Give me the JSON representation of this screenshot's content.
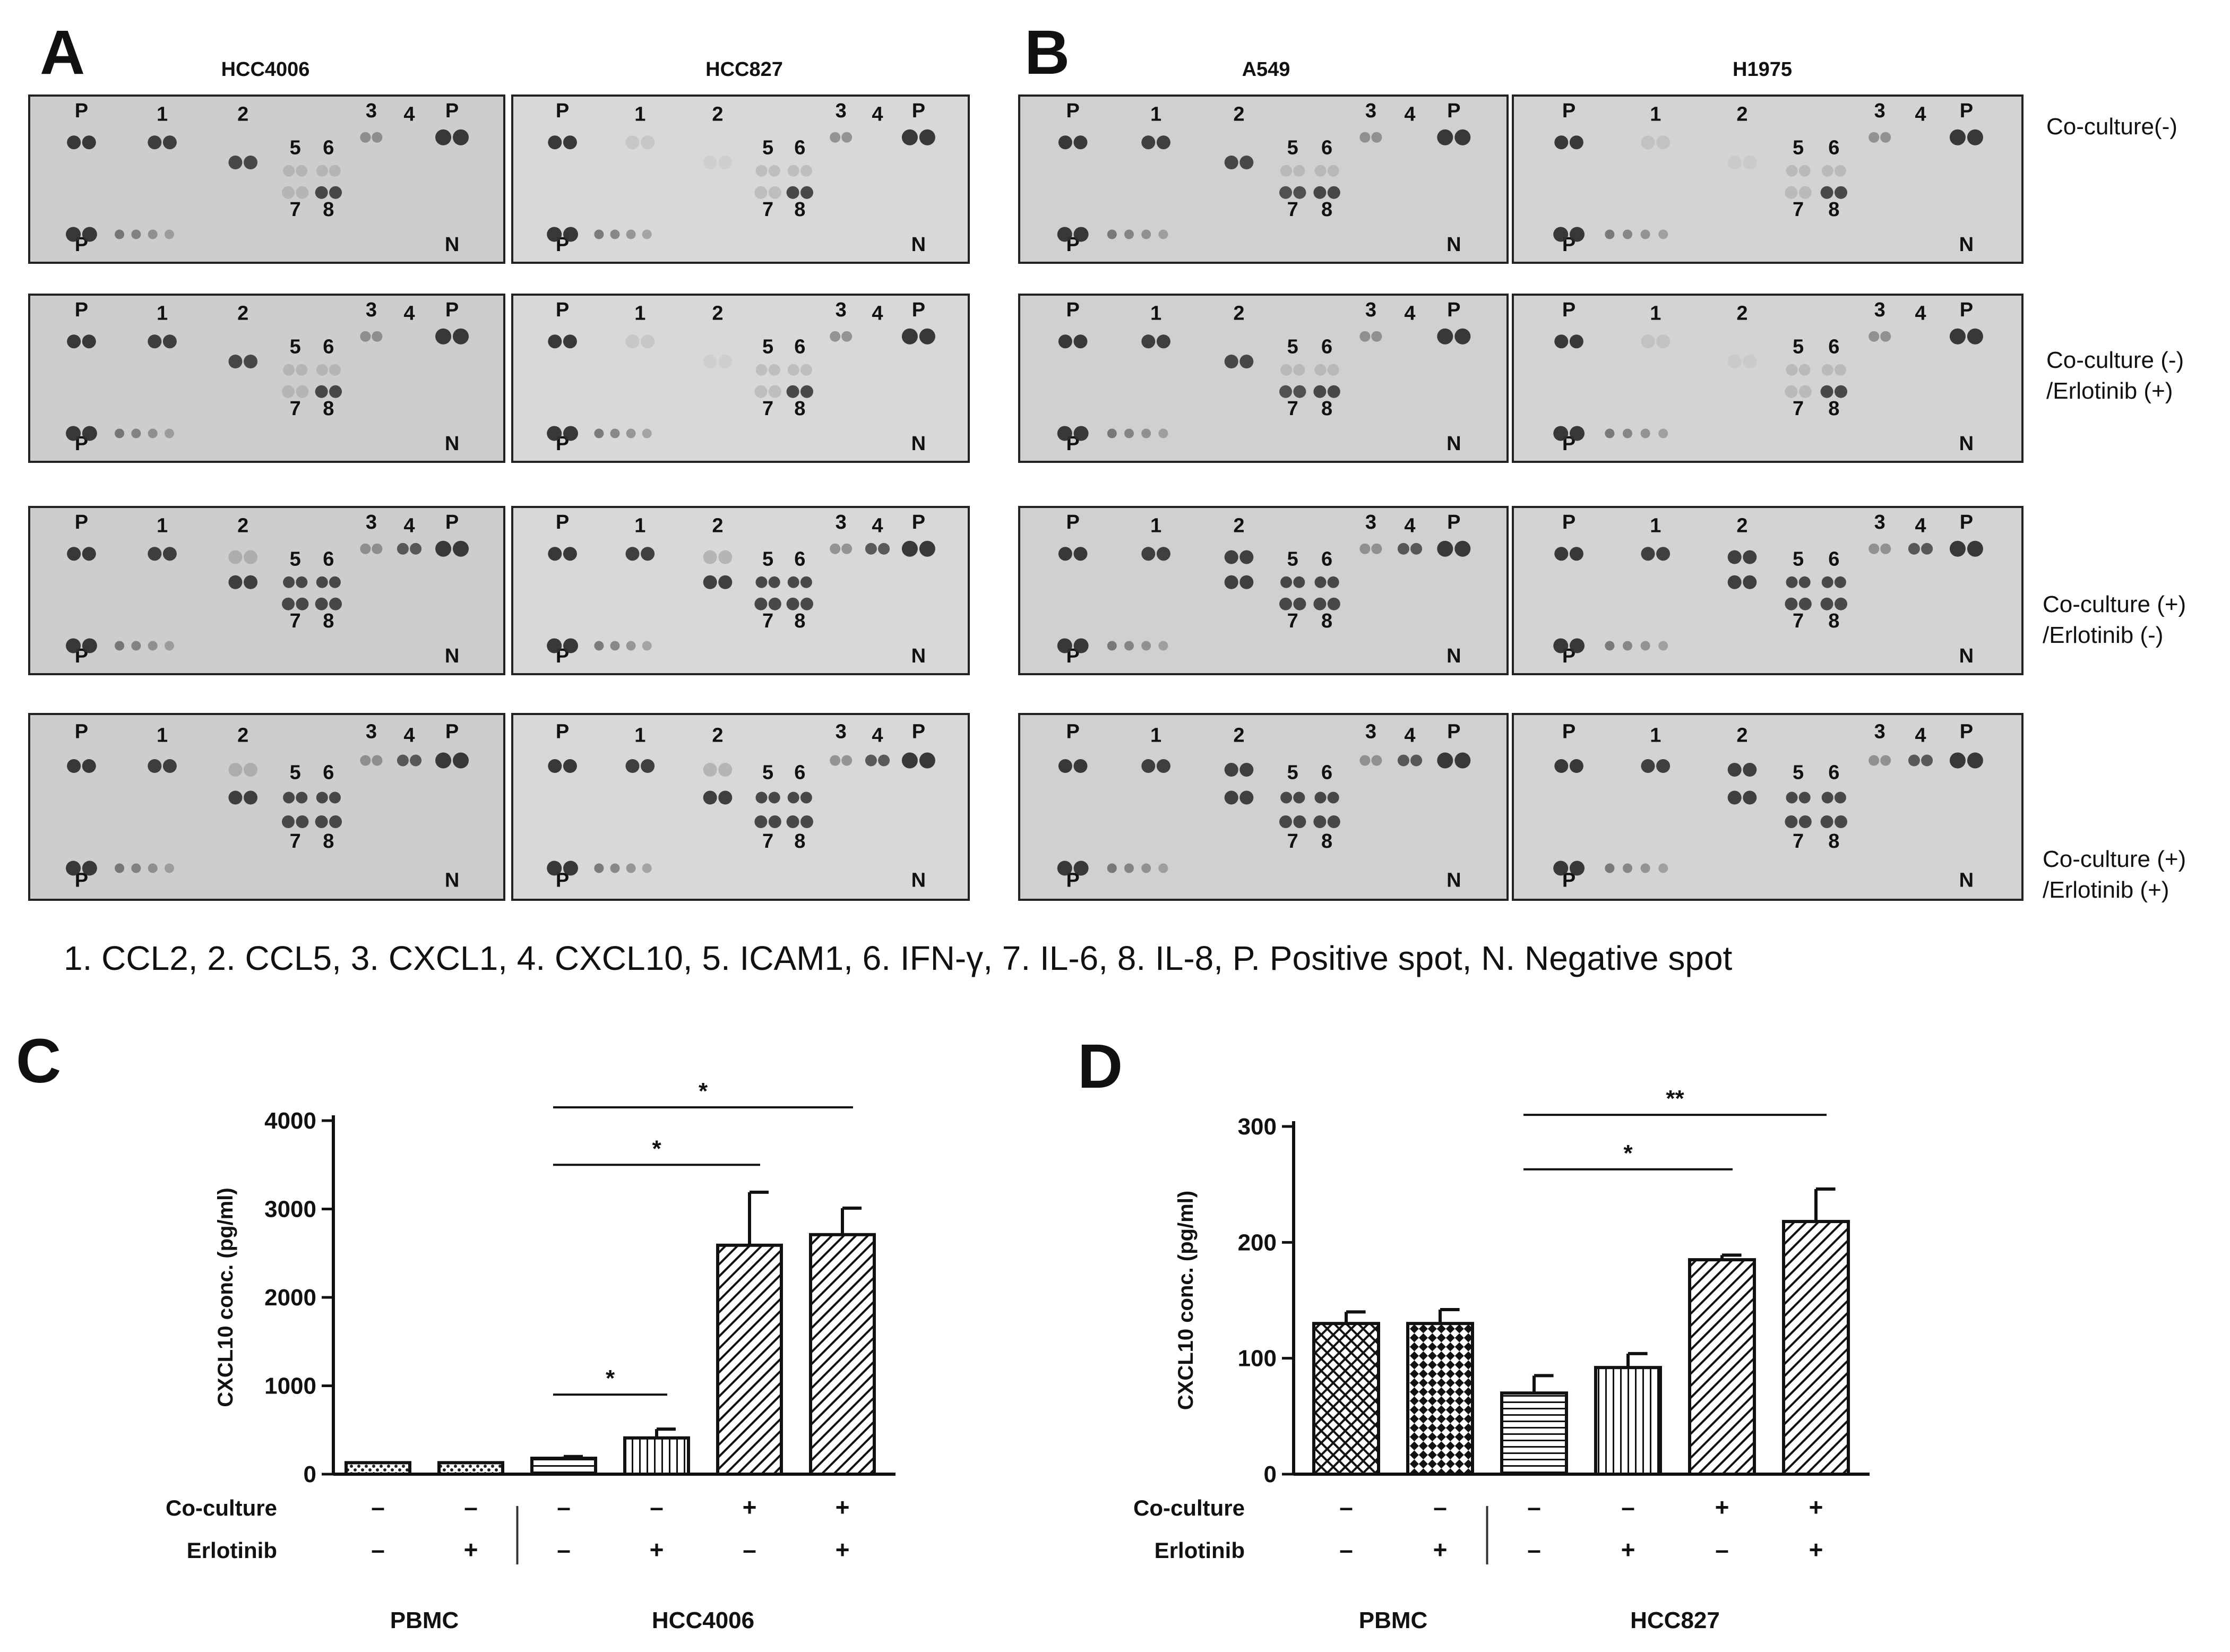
{
  "panels": {
    "a": {
      "letter": "A",
      "columns": [
        "HCC4006",
        "HCC827"
      ]
    },
    "b": {
      "letter": "B",
      "columns": [
        "A549",
        "H1975"
      ]
    },
    "c": {
      "letter": "C"
    },
    "d": {
      "letter": "D"
    }
  },
  "conditions": [
    {
      "line1": "Co-culture(-)",
      "line2": ""
    },
    {
      "line1": "Co-culture (-)",
      "line2": "/Erlotinib (+)"
    },
    {
      "line1": "Co-culture (+)",
      "line2": "/Erlotinib (-)"
    },
    {
      "line1": "Co-culture (+)",
      "line2": "/Erlotinib (+)"
    }
  ],
  "spot_labels": {
    "P": "P",
    "N": "N",
    "n1": "1",
    "n2": "2",
    "n3": "3",
    "n4": "4",
    "n5": "5",
    "n6": "6",
    "n7": "7",
    "n8": "8"
  },
  "legend_text": "1. CCL2, 2. CCL5, 3. CXCL1, 4. CXCL10, 5. ICAM1, 6. IFN-γ, 7. IL-6, 8. IL-8, P. Positive spot, N. Negative spot",
  "chart_data": [
    {
      "id": "C",
      "type": "bar",
      "title": "",
      "ylabel": "CXCL10 conc. (pg/ml)",
      "ylim": [
        0,
        4000
      ],
      "yticks": [
        0,
        1000,
        2000,
        3000,
        4000
      ],
      "ytick_labels": [
        "0",
        "1000",
        "2000",
        "3000",
        "4000"
      ],
      "values": [
        130,
        130,
        180,
        410,
        2590,
        2710
      ],
      "errors": [
        0,
        0,
        20,
        100,
        600,
        300
      ],
      "patterns": [
        "dots",
        "dots",
        "hlines",
        "vlines",
        "diag",
        "diag"
      ],
      "row_labels": [
        "Co-culture",
        "Erlotinib"
      ],
      "coculture": [
        "–",
        "–",
        "–",
        "–",
        "+",
        "+"
      ],
      "erlotinib": [
        "–",
        "+",
        "–",
        "+",
        "–",
        "+"
      ],
      "groups": [
        "PBMC",
        "HCC4006"
      ],
      "significance": [
        {
          "from": 2,
          "to": 3,
          "label": "*",
          "value": 900
        },
        {
          "from": 2,
          "to": 4,
          "label": "*",
          "value": 3500
        },
        {
          "from": 2,
          "to": 5,
          "label": "*",
          "value": 4150
        }
      ]
    },
    {
      "id": "D",
      "type": "bar",
      "title": "",
      "ylabel": "CXCL10 conc. (pg/ml)",
      "ylim": [
        0,
        300
      ],
      "yticks": [
        0,
        100,
        200,
        300
      ],
      "ytick_labels": [
        "0",
        "100",
        "200",
        "300"
      ],
      "values": [
        130,
        130,
        70,
        92,
        185,
        218
      ],
      "errors": [
        10,
        12,
        15,
        12,
        4,
        28
      ],
      "patterns": [
        "cross",
        "check",
        "hlines",
        "vlines",
        "diag",
        "diag"
      ],
      "row_labels": [
        "Co-culture",
        "Erlotinib"
      ],
      "coculture": [
        "–",
        "–",
        "–",
        "–",
        "+",
        "+"
      ],
      "erlotinib": [
        "–",
        "+",
        "–",
        "+",
        "–",
        "+"
      ],
      "groups": [
        "PBMC",
        "HCC827"
      ],
      "significance": [
        {
          "from": 2,
          "to": 4,
          "label": "*",
          "value": 263
        },
        {
          "from": 2,
          "to": 5,
          "label": "**",
          "value": 310
        }
      ]
    }
  ]
}
